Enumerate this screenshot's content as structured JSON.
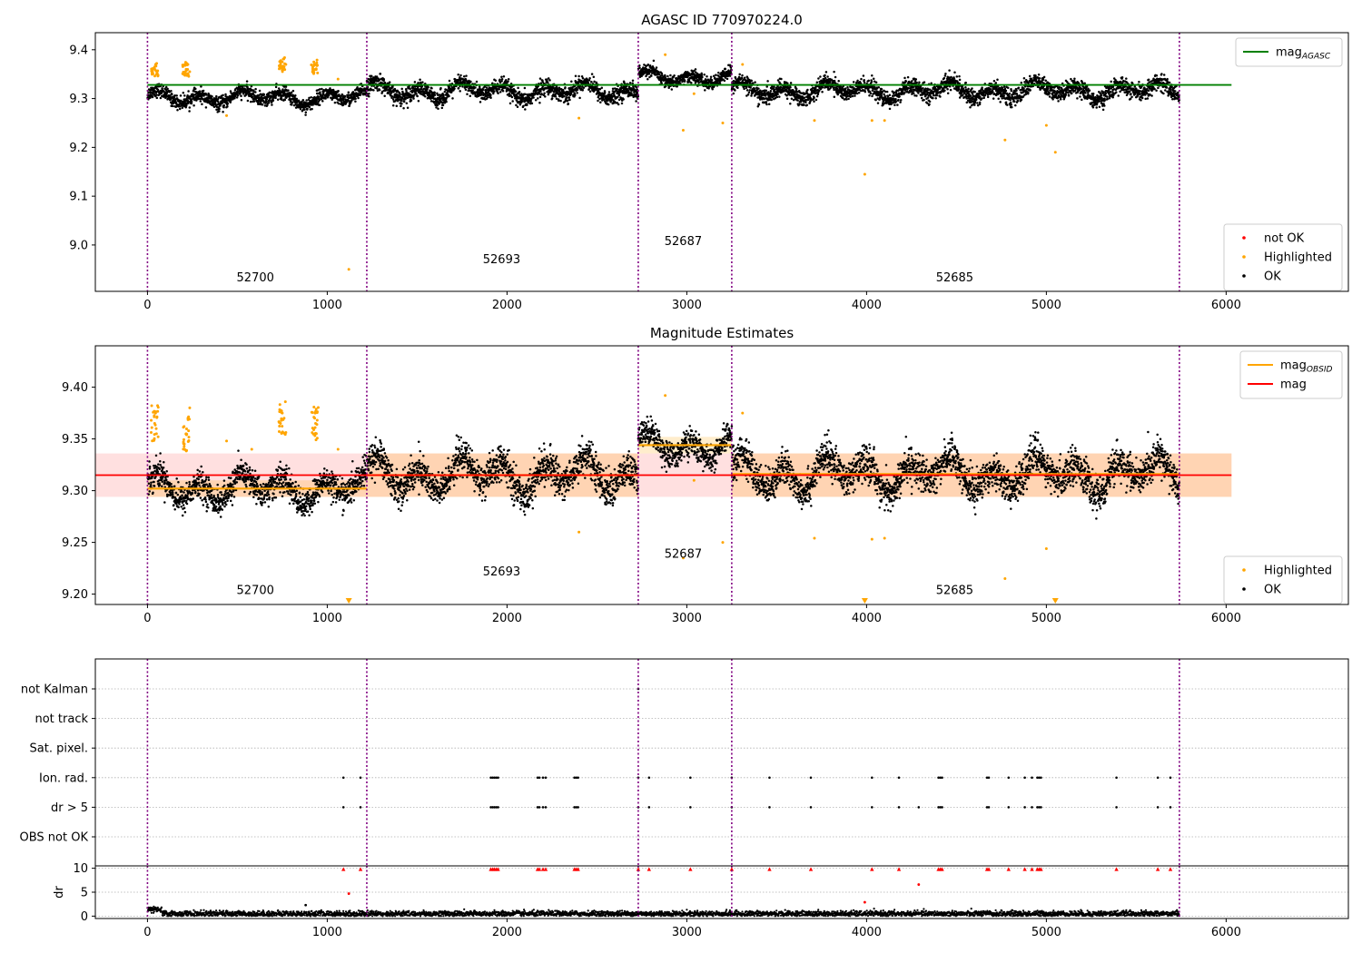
{
  "chart_data": [
    {
      "type": "scatter",
      "title": "AGASC ID 770970224.0",
      "xlim": [
        -290,
        6680
      ],
      "ylim": [
        8.905,
        9.435
      ],
      "xticks": [
        0,
        1000,
        2000,
        3000,
        4000,
        5000,
        6000
      ],
      "yticks": [
        9.0,
        9.1,
        9.2,
        9.3,
        9.4
      ],
      "grid": false,
      "obsid_boundaries": [
        0,
        1220,
        2730,
        3250,
        5740
      ],
      "obsid_labels": [
        {
          "text": "52700",
          "x": 600,
          "y": 8.925
        },
        {
          "text": "52693",
          "x": 1970,
          "y": 8.963
        },
        {
          "text": "52687",
          "x": 2980,
          "y": 9.0
        },
        {
          "text": "52685",
          "x": 4490,
          "y": 8.925
        }
      ],
      "reference_line": {
        "name": "mag_AGASC",
        "y": 9.328,
        "x_range": [
          0,
          6030
        ],
        "color": "#008000"
      },
      "series": [
        {
          "name": "not OK",
          "color": "#ff0000",
          "points": []
        },
        {
          "name": "Highlighted",
          "color": "#ffa500",
          "points": [
            [
              40,
              9.36
            ],
            [
              45,
              9.37
            ],
            [
              50,
              9.35
            ],
            [
              205,
              9.35
            ],
            [
              215,
              9.36
            ],
            [
              225,
              9.37
            ],
            [
              235,
              9.355
            ],
            [
              440,
              9.265
            ],
            [
              740,
              9.37
            ],
            [
              750,
              9.375
            ],
            [
              760,
              9.365
            ],
            [
              930,
              9.37
            ],
            [
              935,
              9.36
            ],
            [
              1060,
              9.34
            ],
            [
              1120,
              8.95
            ],
            [
              2400,
              9.26
            ],
            [
              2880,
              9.39
            ],
            [
              2980,
              9.235
            ],
            [
              3040,
              9.31
            ],
            [
              3200,
              9.25
            ],
            [
              3310,
              9.37
            ],
            [
              3710,
              9.255
            ],
            [
              3990,
              9.145
            ],
            [
              4030,
              9.255
            ],
            [
              4100,
              9.255
            ],
            [
              4770,
              9.215
            ],
            [
              5000,
              9.245
            ],
            [
              5050,
              9.19
            ]
          ]
        },
        {
          "name": "OK",
          "color": "#000000",
          "segments": [
            [
              0,
              1220,
              9.302,
              0.018
            ],
            [
              1220,
              2730,
              9.315,
              0.022
            ],
            [
              2730,
              3250,
              9.343,
              0.017
            ],
            [
              3250,
              5740,
              9.316,
              0.022
            ]
          ]
        }
      ],
      "legends": [
        {
          "placement": "upper-right",
          "entries": [
            "mag_AGASC"
          ]
        },
        {
          "placement": "lower-right",
          "entries": [
            "not OK",
            "Highlighted",
            "OK"
          ]
        }
      ]
    },
    {
      "type": "scatter",
      "title": "Magnitude Estimates",
      "xlim": [
        -290,
        6680
      ],
      "ylim": [
        9.19,
        9.44
      ],
      "xticks": [
        0,
        1000,
        2000,
        3000,
        4000,
        5000,
        6000
      ],
      "yticks": [
        9.2,
        9.25,
        9.3,
        9.35,
        9.4
      ],
      "grid": false,
      "obsid_boundaries": [
        0,
        1220,
        2730,
        3250,
        5740
      ],
      "obsid_labels": [
        {
          "text": "52700",
          "x": 600,
          "y": 9.2
        },
        {
          "text": "52693",
          "x": 1970,
          "y": 9.218
        },
        {
          "text": "52687",
          "x": 2980,
          "y": 9.235
        },
        {
          "text": "52685",
          "x": 4490,
          "y": 9.2
        }
      ],
      "mag_line": {
        "name": "mag",
        "y": 9.315,
        "band": [
          9.294,
          9.336
        ],
        "x_range": [
          -290,
          6030
        ],
        "color": "#ff0000"
      },
      "obsid_mags": [
        {
          "x_range": [
            0,
            1220
          ],
          "y": 9.302,
          "band": [
            9.294,
            9.31
          ]
        },
        {
          "x_range": [
            1220,
            2730
          ],
          "y": 9.315,
          "band": [
            9.294,
            9.336
          ]
        },
        {
          "x_range": [
            2730,
            3250
          ],
          "y": 9.344,
          "band": [
            9.336,
            9.352
          ]
        },
        {
          "x_range": [
            3250,
            6030
          ],
          "y": 9.316,
          "band": [
            9.294,
            9.336
          ]
        }
      ],
      "obsid_mag_name": "mag_OBSID",
      "series": [
        {
          "name": "Highlighted",
          "color": "#ffa500",
          "points": [
            [
              40,
              9.365
            ],
            [
              45,
              9.375
            ],
            [
              50,
              9.355
            ],
            [
              205,
              9.345
            ],
            [
              215,
              9.355
            ],
            [
              225,
              9.37
            ],
            [
              235,
              9.38
            ],
            [
              440,
              9.348
            ],
            [
              580,
              9.34
            ],
            [
              740,
              9.365
            ],
            [
              750,
              9.375
            ],
            [
              760,
              9.37
            ],
            [
              930,
              9.37
            ],
            [
              935,
              9.365
            ],
            [
              1060,
              9.34
            ],
            [
              2400,
              9.26
            ],
            [
              2880,
              9.392
            ],
            [
              2980,
              9.235
            ],
            [
              3040,
              9.31
            ],
            [
              3200,
              9.25
            ],
            [
              3310,
              9.375
            ],
            [
              3710,
              9.254
            ],
            [
              4030,
              9.253
            ],
            [
              4100,
              9.254
            ],
            [
              4770,
              9.215
            ],
            [
              5000,
              9.244
            ]
          ],
          "clipped_below": [
            1120,
            3990,
            5050
          ]
        },
        {
          "name": "OK",
          "color": "#000000",
          "segments": [
            [
              0,
              1220,
              9.302,
              0.018
            ],
            [
              1220,
              2730,
              9.315,
              0.022
            ],
            [
              2730,
              3250,
              9.343,
              0.017
            ],
            [
              3250,
              5740,
              9.316,
              0.022
            ]
          ]
        }
      ],
      "legends": [
        {
          "placement": "upper-right",
          "entries": [
            "mag_OBSID",
            "mag"
          ]
        },
        {
          "placement": "lower-right",
          "entries": [
            "Highlighted",
            "OK"
          ]
        }
      ]
    },
    {
      "type": "scatter",
      "title": "",
      "xlim": [
        -290,
        6680
      ],
      "xticks": [
        0,
        1000,
        2000,
        3000,
        4000,
        5000,
        6000
      ],
      "flag_rows": [
        "not Kalman",
        "not track",
        "Sat. pixel.",
        "Ion. rad.",
        "dr > 5",
        "OBS not OK"
      ],
      "flag_points": {
        "not Kalman": [
          2730
        ],
        "Ion. rad.": [
          1090,
          1185,
          1910,
          1920,
          1930,
          1940,
          1950,
          2170,
          2180,
          2200,
          2215,
          2375,
          2385,
          2395,
          2730,
          2790,
          3020,
          3250,
          3460,
          3690,
          4030,
          4180,
          4400,
          4410,
          4420,
          4670,
          4680,
          4790,
          4880,
          4920,
          4950,
          4960,
          4970,
          5390,
          5620,
          5690
        ],
        "dr > 5": [
          1090,
          1185,
          1910,
          1920,
          1930,
          1940,
          1950,
          2170,
          2180,
          2200,
          2215,
          2375,
          2385,
          2395,
          2730,
          2790,
          3020,
          3250,
          3460,
          3690,
          4030,
          4180,
          4290,
          4400,
          4410,
          4420,
          4670,
          4680,
          4790,
          4880,
          4920,
          4950,
          4960,
          4970,
          5390,
          5620,
          5690
        ]
      },
      "obsid_boundaries": [
        0,
        1220,
        2730,
        3250,
        5740
      ],
      "dr_panel": {
        "ylabel": "dr",
        "ylim": [
          -0.5,
          10.5
        ],
        "yticks": [
          0,
          5,
          10
        ],
        "clipped_at_10": [
          1090,
          1185,
          1910,
          1920,
          1930,
          1940,
          1950,
          2170,
          2180,
          2200,
          2215,
          2375,
          2385,
          2395,
          2730,
          2790,
          3020,
          3250,
          3460,
          3690,
          4030,
          4180,
          4400,
          4410,
          4420,
          4670,
          4680,
          4790,
          4880,
          4920,
          4950,
          4960,
          4970,
          5390,
          5620,
          5690
        ],
        "outliers": [
          [
            1120,
            4.7
          ],
          [
            880,
            2.3
          ],
          [
            4290,
            6.6
          ],
          [
            3990,
            2.9
          ]
        ],
        "typical_dr": 0.5
      }
    }
  ]
}
